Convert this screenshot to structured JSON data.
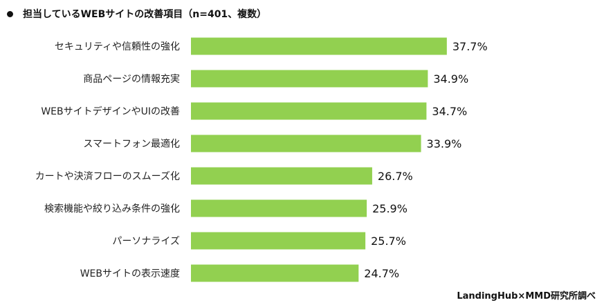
{
  "chart_data": {
    "type": "bar",
    "orientation": "horizontal",
    "title": "担当しているWEBサイトの改善項目（n=401、複数）",
    "categories": [
      "セキュリティや信頼性の強化",
      "商品ページの情報充実",
      "WEBサイトデザインやUIの改善",
      "スマートフォン最適化",
      "カートや決済フローのスムーズ化",
      "検索機能や絞り込み条件の強化",
      "パーソナライズ",
      "WEBサイトの表示速度"
    ],
    "values": [
      37.7,
      34.9,
      34.7,
      33.9,
      26.7,
      25.9,
      25.7,
      24.7
    ],
    "value_labels": [
      "37.7%",
      "34.9%",
      "34.7%",
      "33.9%",
      "26.7%",
      "25.9%",
      "25.7%",
      "24.7%"
    ],
    "unit": "%",
    "bar_color": "#92d050",
    "grid": false,
    "legend": "none",
    "source": "LandingHub×MMD研究所調べ"
  }
}
